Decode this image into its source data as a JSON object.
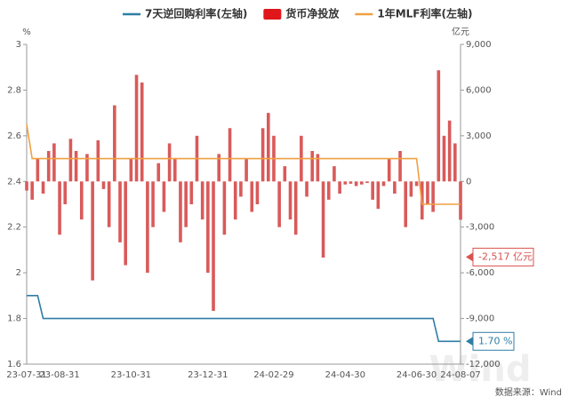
{
  "chart_data": {
    "type": "bar-line",
    "legend_position": "top",
    "ylabel": "%",
    "y2label": "亿元",
    "categories": [
      "23-07-31",
      null,
      null,
      null,
      null,
      null,
      "23-08-31",
      null,
      null,
      null,
      null,
      null,
      null,
      null,
      null,
      null,
      null,
      null,
      null,
      "23-10-31",
      null,
      null,
      null,
      null,
      null,
      null,
      null,
      null,
      null,
      null,
      null,
      null,
      null,
      "23-12-31",
      null,
      null,
      null,
      null,
      null,
      null,
      null,
      null,
      null,
      null,
      null,
      "24-02-29",
      null,
      null,
      null,
      null,
      null,
      null,
      null,
      null,
      null,
      null,
      null,
      null,
      "24-04-30",
      null,
      null,
      null,
      null,
      null,
      null,
      null,
      null,
      null,
      null,
      null,
      null,
      "24-06-30",
      null,
      null,
      null,
      null,
      null,
      null,
      null,
      "24-08-07"
    ],
    "ylim": [
      1.6,
      3
    ],
    "yticks": [
      1.6,
      1.8,
      2,
      2.2,
      2.4,
      2.6,
      2.8,
      3
    ],
    "y2lim": [
      -12000,
      9000
    ],
    "y2ticks": [
      {
        "value": -12000,
        "label": "-12,000"
      },
      {
        "value": -9000,
        "label": "-9,000"
      },
      {
        "value": -6000,
        "label": "-6,000"
      },
      {
        "value": -3000,
        "label": "-3,000"
      },
      0,
      {
        "value": 3000,
        "label": "3,000"
      },
      {
        "value": 6000,
        "label": "6,000"
      },
      {
        "value": 9000,
        "label": "9,000"
      }
    ],
    "series": [
      {
        "name": "7天逆回购利率(左轴)",
        "kind": "line",
        "color": "#2e7ea6",
        "values": [
          1.9,
          1.9,
          1.9,
          1.8,
          1.8,
          1.8,
          1.8,
          1.8,
          1.8,
          1.8,
          1.8,
          1.8,
          1.8,
          1.8,
          1.8,
          1.8,
          1.8,
          1.8,
          1.8,
          1.8,
          1.8,
          1.8,
          1.8,
          1.8,
          1.8,
          1.8,
          1.8,
          1.8,
          1.8,
          1.8,
          1.8,
          1.8,
          1.8,
          1.8,
          1.8,
          1.8,
          1.8,
          1.8,
          1.8,
          1.8,
          1.8,
          1.8,
          1.8,
          1.8,
          1.8,
          1.8,
          1.8,
          1.8,
          1.8,
          1.8,
          1.8,
          1.8,
          1.8,
          1.8,
          1.8,
          1.8,
          1.8,
          1.8,
          1.8,
          1.8,
          1.8,
          1.8,
          1.8,
          1.8,
          1.8,
          1.8,
          1.8,
          1.8,
          1.8,
          1.8,
          1.8,
          1.8,
          1.8,
          1.8,
          1.8,
          1.7,
          1.7,
          1.7,
          1.7,
          1.7
        ]
      },
      {
        "name": "货币净投放",
        "kind": "bar",
        "axis": "y2",
        "color": "#e0161b",
        "bar_color": "#d95a5a",
        "values": [
          -600,
          -1200,
          1500,
          -800,
          2000,
          2500,
          -3500,
          -1500,
          2800,
          2000,
          -2500,
          1800,
          -6500,
          2700,
          -500,
          -3000,
          5000,
          -4000,
          -5500,
          1500,
          7000,
          6500,
          -6000,
          -3000,
          1200,
          -2000,
          2500,
          1500,
          -4000,
          -3000,
          -1500,
          3000,
          -2500,
          -6000,
          -8500,
          1800,
          -3500,
          3500,
          -2500,
          -1000,
          1500,
          -2000,
          -1500,
          3500,
          4500,
          3000,
          -3000,
          1000,
          -2500,
          -3500,
          3000,
          -1000,
          2000,
          1800,
          -5000,
          -1200,
          1000,
          -800,
          -200,
          -150,
          -300,
          -200,
          -100,
          -1200,
          -1800,
          -300,
          1500,
          -800,
          2000,
          -3000,
          -1000,
          -300,
          -2500,
          -1500,
          -2000,
          7300,
          3000,
          4000,
          2500,
          -2517
        ]
      },
      {
        "name": "1年MLF利率(左轴)",
        "kind": "line",
        "color": "#f0a040",
        "values": [
          2.65,
          2.5,
          2.5,
          2.5,
          2.5,
          2.5,
          2.5,
          2.5,
          2.5,
          2.5,
          2.5,
          2.5,
          2.5,
          2.5,
          2.5,
          2.5,
          2.5,
          2.5,
          2.5,
          2.5,
          2.5,
          2.5,
          2.5,
          2.5,
          2.5,
          2.5,
          2.5,
          2.5,
          2.5,
          2.5,
          2.5,
          2.5,
          2.5,
          2.5,
          2.5,
          2.5,
          2.5,
          2.5,
          2.5,
          2.5,
          2.5,
          2.5,
          2.5,
          2.5,
          2.5,
          2.5,
          2.5,
          2.5,
          2.5,
          2.5,
          2.5,
          2.5,
          2.5,
          2.5,
          2.5,
          2.5,
          2.5,
          2.5,
          2.5,
          2.5,
          2.5,
          2.5,
          2.5,
          2.5,
          2.5,
          2.5,
          2.5,
          2.5,
          2.5,
          2.5,
          2.5,
          2.5,
          2.3,
          2.3,
          2.3,
          2.3,
          2.3,
          2.3,
          2.3,
          2.3
        ]
      }
    ],
    "annotations": [
      "-2,517 亿元",
      "1.70 %"
    ],
    "watermark": "Wind",
    "source": "数据来源：Wind"
  }
}
